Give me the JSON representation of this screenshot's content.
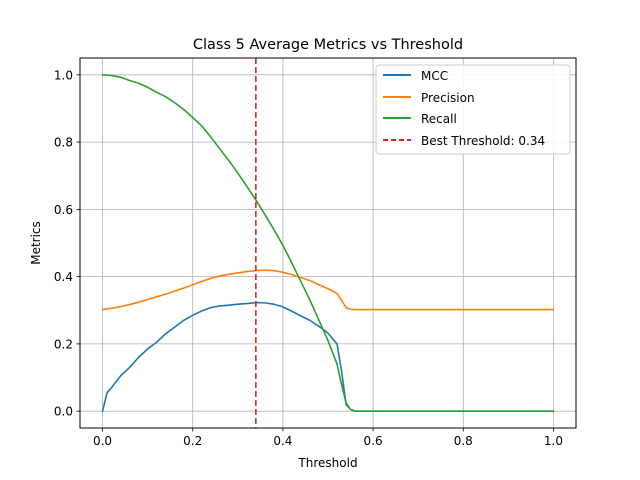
{
  "chart_data": {
    "type": "line",
    "title": "Class 5 Average Metrics vs Threshold",
    "xlabel": "Threshold",
    "ylabel": "Metrics",
    "xlim": [
      -0.05,
      1.05
    ],
    "ylim": [
      -0.05,
      1.05
    ],
    "xticks": [
      0.0,
      0.2,
      0.4,
      0.6,
      0.8,
      1.0
    ],
    "xtick_labels": [
      "0.0",
      "0.2",
      "0.4",
      "0.6",
      "0.8",
      "1.0"
    ],
    "yticks": [
      0.0,
      0.2,
      0.4,
      0.6,
      0.8,
      1.0
    ],
    "ytick_labels": [
      "0.0",
      "0.2",
      "0.4",
      "0.6",
      "0.8",
      "1.0"
    ],
    "grid": true,
    "legend_position": "top-right",
    "series": [
      {
        "name": "MCC",
        "color": "#1f77b4",
        "x": [
          0.0,
          0.01,
          0.02,
          0.03,
          0.04,
          0.06,
          0.08,
          0.1,
          0.12,
          0.14,
          0.16,
          0.18,
          0.2,
          0.22,
          0.24,
          0.26,
          0.28,
          0.3,
          0.32,
          0.34,
          0.36,
          0.38,
          0.4,
          0.42,
          0.44,
          0.46,
          0.48,
          0.5,
          0.52,
          0.53,
          0.54,
          0.55,
          0.56,
          0.6,
          0.7,
          0.8,
          0.9,
          1.0
        ],
        "y": [
          0.0,
          0.055,
          0.07,
          0.088,
          0.105,
          0.13,
          0.16,
          0.185,
          0.205,
          0.23,
          0.25,
          0.27,
          0.285,
          0.298,
          0.308,
          0.313,
          0.315,
          0.318,
          0.32,
          0.323,
          0.322,
          0.318,
          0.31,
          0.297,
          0.283,
          0.27,
          0.252,
          0.232,
          0.2,
          0.12,
          0.02,
          0.005,
          0.0,
          0.0,
          0.0,
          0.0,
          0.0,
          0.0
        ]
      },
      {
        "name": "Precision",
        "color": "#ff7f0e",
        "x": [
          0.0,
          0.02,
          0.04,
          0.06,
          0.08,
          0.1,
          0.12,
          0.14,
          0.16,
          0.18,
          0.2,
          0.22,
          0.24,
          0.26,
          0.28,
          0.3,
          0.32,
          0.34,
          0.36,
          0.38,
          0.4,
          0.42,
          0.44,
          0.46,
          0.48,
          0.5,
          0.52,
          0.53,
          0.54,
          0.55,
          0.56,
          0.6,
          0.7,
          0.8,
          0.9,
          1.0
        ],
        "y": [
          0.302,
          0.306,
          0.311,
          0.317,
          0.324,
          0.332,
          0.34,
          0.348,
          0.357,
          0.366,
          0.376,
          0.386,
          0.395,
          0.402,
          0.407,
          0.411,
          0.415,
          0.418,
          0.419,
          0.418,
          0.413,
          0.406,
          0.397,
          0.388,
          0.376,
          0.364,
          0.35,
          0.33,
          0.308,
          0.303,
          0.302,
          0.302,
          0.302,
          0.302,
          0.302,
          0.302
        ]
      },
      {
        "name": "Recall",
        "color": "#2ca02c",
        "x": [
          0.0,
          0.02,
          0.04,
          0.06,
          0.08,
          0.1,
          0.12,
          0.14,
          0.16,
          0.18,
          0.2,
          0.22,
          0.24,
          0.26,
          0.28,
          0.3,
          0.32,
          0.34,
          0.36,
          0.38,
          0.4,
          0.42,
          0.44,
          0.46,
          0.48,
          0.5,
          0.52,
          0.53,
          0.54,
          0.55,
          0.56,
          0.6,
          0.7,
          0.8,
          0.9,
          1.0
        ],
        "y": [
          1.0,
          0.998,
          0.993,
          0.983,
          0.975,
          0.963,
          0.948,
          0.935,
          0.917,
          0.897,
          0.873,
          0.848,
          0.815,
          0.78,
          0.745,
          0.708,
          0.668,
          0.628,
          0.585,
          0.54,
          0.493,
          0.44,
          0.385,
          0.33,
          0.27,
          0.21,
          0.14,
          0.08,
          0.025,
          0.005,
          0.0,
          0.0,
          0.0,
          0.0,
          0.0,
          0.0
        ]
      }
    ],
    "vline": {
      "name": "Best Threshold: 0.34",
      "x": 0.34,
      "color": "#d62728",
      "style": "dashed"
    }
  }
}
